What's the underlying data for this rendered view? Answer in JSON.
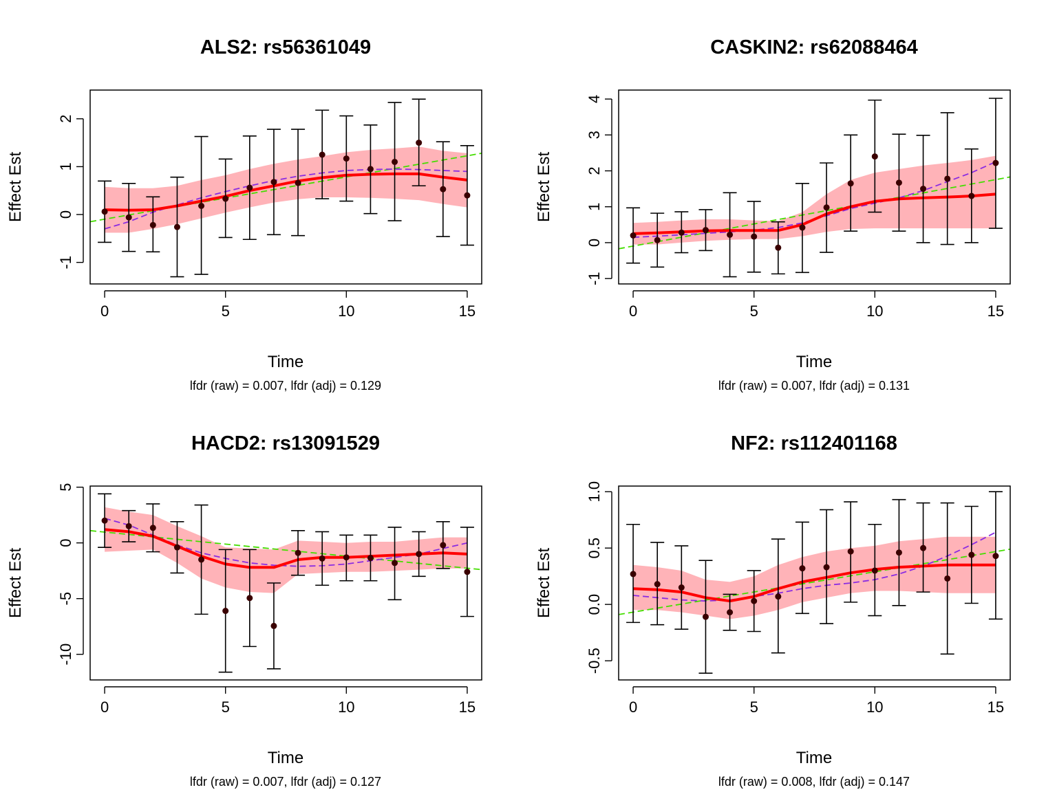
{
  "colors": {
    "band": "#ffb3b8",
    "smooth_line": "#ff0000",
    "linear_fit": "#44dd00",
    "spline_fit": "#8a2be2",
    "points": "#3a0000",
    "axes": "#000000"
  },
  "chart_data": [
    {
      "type": "line",
      "title": "ALS2: rs56361049",
      "xlabel": "Time",
      "ylabel": "Effect Est",
      "caption": "lfdr (raw) = 0.007, lfdr (adj) = 0.129",
      "xlim": [
        -0.6,
        15.6
      ],
      "ylim": [
        -1.45,
        2.6
      ],
      "xticks": [
        "0",
        "5",
        "10",
        "15"
      ],
      "yticks": [
        "-1",
        "0",
        "1",
        "2"
      ],
      "x": [
        0,
        1,
        2,
        3,
        4,
        5,
        6,
        7,
        8,
        9,
        10,
        11,
        12,
        13,
        14,
        15
      ],
      "points": [
        0.06,
        -0.06,
        -0.22,
        -0.26,
        0.18,
        0.33,
        0.56,
        0.68,
        0.66,
        1.25,
        1.17,
        0.95,
        1.1,
        1.5,
        0.53,
        0.4
      ],
      "ci_lower": [
        -0.58,
        -0.77,
        -0.78,
        -1.3,
        -1.25,
        -0.48,
        -0.52,
        -0.42,
        -0.44,
        0.33,
        0.28,
        0.02,
        -0.13,
        0.6,
        -0.46,
        -0.64
      ],
      "ci_upper": [
        0.7,
        0.65,
        0.37,
        0.78,
        1.63,
        1.16,
        1.64,
        1.78,
        1.78,
        2.18,
        2.06,
        1.87,
        2.34,
        2.41,
        1.52,
        1.44
      ],
      "band_lower": [
        -0.38,
        -0.38,
        -0.3,
        -0.2,
        -0.08,
        0.04,
        0.15,
        0.25,
        0.32,
        0.36,
        0.36,
        0.35,
        0.33,
        0.3,
        0.22,
        0.15
      ],
      "band_upper": [
        0.58,
        0.55,
        0.55,
        0.6,
        0.72,
        0.82,
        0.95,
        1.06,
        1.15,
        1.22,
        1.3,
        1.35,
        1.38,
        1.42,
        1.33,
        1.28
      ],
      "smooth": [
        0.1,
        0.09,
        0.1,
        0.18,
        0.28,
        0.38,
        0.5,
        0.6,
        0.7,
        0.77,
        0.82,
        0.84,
        0.85,
        0.85,
        0.78,
        0.72
      ],
      "linear_fit": {
        "x": [
          -0.6,
          15.6
        ],
        "y": [
          -0.15,
          1.28
        ]
      },
      "spline_fit": [
        -0.3,
        -0.15,
        0.05,
        0.2,
        0.35,
        0.48,
        0.6,
        0.71,
        0.8,
        0.87,
        0.92,
        0.94,
        0.95,
        0.94,
        0.92,
        0.9
      ]
    },
    {
      "type": "line",
      "title": "CASKIN2: rs62088464",
      "xlabel": "Time",
      "ylabel": "Effect Est",
      "caption": "lfdr (raw) = 0.007, lfdr (adj) = 0.131",
      "xlim": [
        -0.6,
        15.6
      ],
      "ylim": [
        -1.15,
        4.25
      ],
      "xticks": [
        "0",
        "5",
        "10",
        "15"
      ],
      "yticks": [
        "-1",
        "0",
        "1",
        "2",
        "3",
        "4"
      ],
      "x": [
        0,
        1,
        2,
        3,
        4,
        5,
        6,
        7,
        8,
        9,
        10,
        11,
        12,
        13,
        14,
        15
      ],
      "points": [
        0.2,
        0.07,
        0.28,
        0.35,
        0.22,
        0.17,
        -0.14,
        0.42,
        0.98,
        1.65,
        2.4,
        1.67,
        1.5,
        1.78,
        1.3,
        2.22
      ],
      "ci_lower": [
        -0.57,
        -0.68,
        -0.28,
        -0.22,
        -0.95,
        -0.82,
        -0.87,
        -0.83,
        -0.27,
        0.32,
        0.85,
        0.32,
        0.0,
        -0.05,
        0.0,
        0.4
      ],
      "ci_upper": [
        0.97,
        0.82,
        0.86,
        0.92,
        1.39,
        1.15,
        0.58,
        1.65,
        2.22,
        3.0,
        3.97,
        3.02,
        2.99,
        3.62,
        2.61,
        4.02
      ],
      "band_lower": [
        -0.05,
        -0.05,
        0.0,
        0.05,
        0.08,
        0.1,
        0.1,
        0.18,
        0.3,
        0.38,
        0.4,
        0.4,
        0.4,
        0.4,
        0.4,
        0.4
      ],
      "band_upper": [
        0.55,
        0.58,
        0.62,
        0.65,
        0.65,
        0.62,
        0.6,
        0.85,
        1.35,
        1.75,
        1.95,
        2.05,
        2.15,
        2.22,
        2.3,
        2.42
      ],
      "smooth": [
        0.25,
        0.27,
        0.3,
        0.33,
        0.34,
        0.34,
        0.34,
        0.5,
        0.8,
        1.0,
        1.15,
        1.22,
        1.25,
        1.27,
        1.3,
        1.35
      ],
      "linear_fit": {
        "x": [
          -0.6,
          15.6
        ],
        "y": [
          -0.17,
          1.83
        ]
      },
      "spline_fit": [
        0.15,
        0.18,
        0.22,
        0.26,
        0.3,
        0.35,
        0.42,
        0.55,
        0.75,
        0.95,
        1.1,
        1.25,
        1.45,
        1.7,
        1.95,
        2.25
      ]
    },
    {
      "type": "line",
      "title": "HACD2: rs13091529",
      "xlabel": "Time",
      "ylabel": "Effect Est",
      "caption": "lfdr (raw) = 0.007, lfdr (adj) = 0.127",
      "xlim": [
        -0.6,
        15.6
      ],
      "ylim": [
        -12.3,
        5.1
      ],
      "xticks": [
        "0",
        "5",
        "10",
        "15"
      ],
      "yticks": [
        "-10",
        "-5",
        "0",
        "5"
      ],
      "x": [
        0,
        1,
        2,
        3,
        4,
        5,
        6,
        7,
        8,
        9,
        10,
        11,
        12,
        13,
        14,
        15
      ],
      "points": [
        2.0,
        1.5,
        1.35,
        -0.4,
        -1.5,
        -6.1,
        -4.95,
        -7.45,
        -0.9,
        -1.4,
        -1.3,
        -1.35,
        -1.8,
        -1.0,
        -0.2,
        -2.6
      ],
      "ci_lower": [
        -0.4,
        0.1,
        -0.8,
        -2.7,
        -6.4,
        -11.6,
        -9.3,
        -11.3,
        -2.9,
        -3.8,
        -3.4,
        -3.4,
        -5.1,
        -3.0,
        -2.3,
        -6.6
      ],
      "ci_upper": [
        4.4,
        2.9,
        3.5,
        1.9,
        3.4,
        -0.6,
        -0.6,
        -3.6,
        1.1,
        1.0,
        0.7,
        0.7,
        1.4,
        1.0,
        1.9,
        1.4
      ],
      "band_lower": [
        -0.8,
        -0.7,
        -0.6,
        -1.8,
        -3.2,
        -4.0,
        -4.4,
        -4.5,
        -2.8,
        -2.7,
        -2.6,
        -2.6,
        -2.5,
        -2.4,
        -2.3,
        -2.3
      ],
      "band_upper": [
        3.2,
        2.8,
        2.5,
        1.5,
        0.6,
        -0.4,
        -0.5,
        -0.6,
        0.2,
        0.1,
        0.0,
        0.1,
        0.1,
        0.3,
        0.5,
        0.5
      ],
      "smooth": [
        1.2,
        1.0,
        0.6,
        -0.3,
        -1.2,
        -1.9,
        -2.2,
        -2.2,
        -1.5,
        -1.3,
        -1.3,
        -1.2,
        -1.1,
        -1.0,
        -0.9,
        -1.0
      ],
      "linear_fit": {
        "x": [
          -0.6,
          15.6
        ],
        "y": [
          1.1,
          -2.4
        ]
      },
      "spline_fit": [
        2.2,
        1.6,
        0.7,
        -0.2,
        -0.9,
        -1.4,
        -1.8,
        -2.0,
        -2.1,
        -2.05,
        -1.9,
        -1.6,
        -1.3,
        -1.0,
        -0.5,
        0.0
      ]
    },
    {
      "type": "line",
      "title": "NF2: rs112401168",
      "xlabel": "Time",
      "ylabel": "Effect Est",
      "caption": "lfdr (raw) = 0.008, lfdr (adj) = 0.147",
      "xlim": [
        -0.6,
        15.6
      ],
      "ylim": [
        -0.67,
        1.05
      ],
      "xticks": [
        "0",
        "5",
        "10",
        "15"
      ],
      "yticks": [
        "-0.5",
        "0.0",
        "0.5",
        "1.0"
      ],
      "x": [
        0,
        1,
        2,
        3,
        4,
        5,
        6,
        7,
        8,
        9,
        10,
        11,
        12,
        13,
        14,
        15
      ],
      "points": [
        0.27,
        0.18,
        0.15,
        -0.11,
        -0.07,
        0.03,
        0.07,
        0.32,
        0.33,
        0.47,
        0.3,
        0.46,
        0.5,
        0.23,
        0.44,
        0.43
      ],
      "ci_lower": [
        -0.16,
        -0.18,
        -0.22,
        -0.61,
        -0.23,
        -0.24,
        -0.43,
        -0.08,
        -0.17,
        0.02,
        -0.1,
        -0.01,
        0.11,
        -0.44,
        0.01,
        -0.13
      ],
      "ci_upper": [
        0.71,
        0.55,
        0.52,
        0.39,
        0.09,
        0.3,
        0.58,
        0.73,
        0.84,
        0.91,
        0.71,
        0.93,
        0.9,
        0.9,
        0.87,
        1.0
      ],
      "band_lower": [
        -0.05,
        -0.05,
        -0.07,
        -0.1,
        -0.13,
        -0.1,
        -0.05,
        0.02,
        0.06,
        0.1,
        0.12,
        0.12,
        0.11,
        0.1,
        0.1,
        0.1
      ],
      "band_upper": [
        0.35,
        0.33,
        0.3,
        0.22,
        0.2,
        0.25,
        0.35,
        0.42,
        0.47,
        0.5,
        0.52,
        0.56,
        0.58,
        0.6,
        0.6,
        0.6
      ],
      "smooth": [
        0.14,
        0.13,
        0.11,
        0.06,
        0.03,
        0.07,
        0.14,
        0.2,
        0.24,
        0.28,
        0.31,
        0.33,
        0.34,
        0.35,
        0.35,
        0.35
      ],
      "linear_fit": {
        "x": [
          -0.6,
          15.6
        ],
        "y": [
          -0.09,
          0.49
        ]
      },
      "spline_fit": [
        0.08,
        0.06,
        0.04,
        0.03,
        0.04,
        0.07,
        0.1,
        0.14,
        0.17,
        0.19,
        0.22,
        0.27,
        0.34,
        0.43,
        0.53,
        0.64
      ]
    }
  ]
}
